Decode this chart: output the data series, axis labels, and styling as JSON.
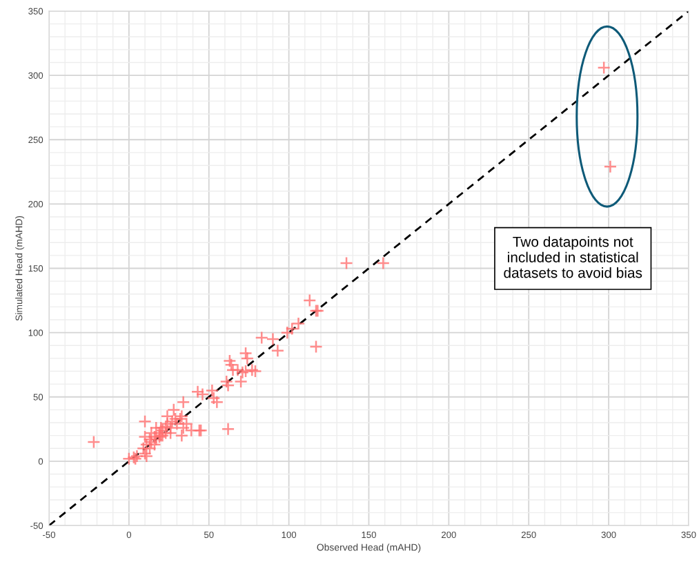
{
  "chart_data": {
    "type": "scatter",
    "xlabel": "Observed Head (mAHD)",
    "ylabel": "Simulated Head (mAHD)",
    "xlim": [
      -50,
      350
    ],
    "ylim": [
      -50,
      350
    ],
    "xticks": [
      -50,
      0,
      50,
      100,
      150,
      200,
      250,
      300,
      350
    ],
    "yticks": [
      -50,
      0,
      50,
      100,
      150,
      200,
      250,
      300,
      350
    ],
    "grid": true,
    "annotations": [
      "Two datapoints not\nincluded in statistical\ndatasets to avoid bias"
    ],
    "series": [
      {
        "type": "scatter",
        "color": "#ff7070",
        "marker": "cross",
        "x": [
          -22,
          10,
          0,
          3,
          5,
          10,
          11,
          9,
          11,
          10,
          14,
          16,
          14,
          19,
          17,
          20,
          21,
          23,
          24,
          26,
          27,
          29,
          28,
          30,
          32,
          33,
          34,
          34,
          36,
          33,
          39,
          45,
          24,
          23,
          20,
          16,
          13,
          13,
          17,
          19,
          21,
          26,
          4,
          43,
          46,
          52,
          53,
          55,
          44,
          62,
          61,
          62,
          63,
          64,
          65,
          68,
          70,
          71,
          73,
          74,
          73,
          77,
          79,
          83,
          90,
          93,
          99,
          102,
          106,
          117,
          118,
          136,
          159,
          113,
          117,
          297,
          301
        ],
        "values": [
          15,
          31,
          2,
          3,
          4,
          6,
          4,
          10,
          13,
          19,
          15,
          19,
          22,
          22,
          26,
          26,
          24,
          27,
          29,
          26,
          31,
          33,
          40,
          29,
          33,
          35,
          46,
          26,
          29,
          20,
          24,
          24,
          35,
          22,
          20,
          13,
          10,
          17,
          17,
          19,
          20,
          22,
          2,
          54,
          52,
          55,
          49,
          46,
          24,
          25,
          62,
          59,
          78,
          75,
          71,
          71,
          62,
          69,
          84,
          80,
          70,
          71,
          70,
          96,
          95,
          86,
          100,
          103,
          107,
          89,
          117,
          154,
          154,
          125,
          117,
          306,
          229
        ]
      },
      {
        "type": "line",
        "color": "#000000",
        "line_style": "dashed",
        "marker": "none",
        "x": [
          -50,
          350
        ],
        "values": [
          -50,
          350
        ]
      }
    ]
  }
}
